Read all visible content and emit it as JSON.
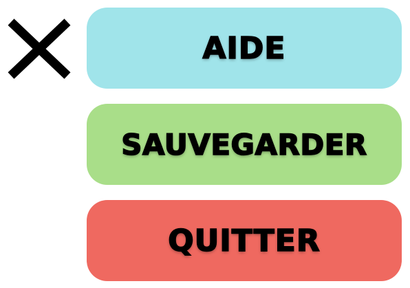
{
  "menu": {
    "close_icon": "close-icon",
    "buttons": [
      {
        "label": "AIDE",
        "color": "#A0E4EA"
      },
      {
        "label": "SAUVEGARDER",
        "color": "#A9DE89"
      },
      {
        "label": "QUITTER",
        "color": "#EF6960"
      }
    ]
  }
}
